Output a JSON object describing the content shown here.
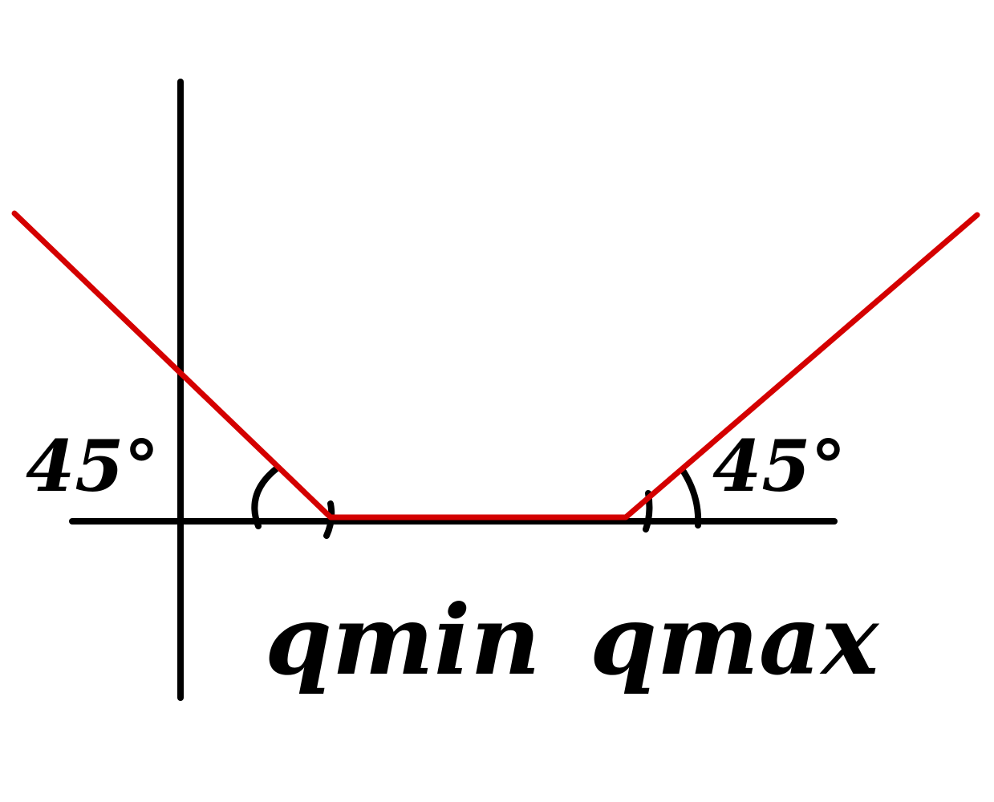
{
  "colors": {
    "axis": "#000000",
    "curve": "#d40000",
    "background": "#ffffff"
  },
  "labels": {
    "left_angle": "45°",
    "right_angle": "45°",
    "q_min": "qmin",
    "q_max": "qmax"
  }
}
